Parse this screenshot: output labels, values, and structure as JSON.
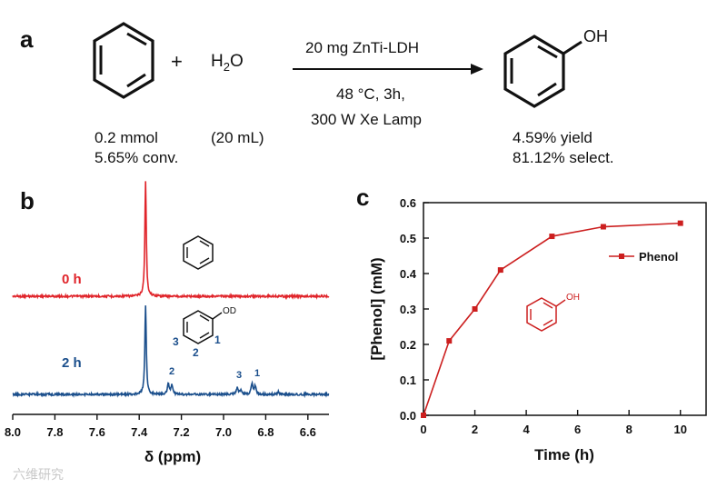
{
  "panel_a": {
    "label": "a",
    "plus": "+",
    "water_text": "H",
    "water_sub": "2",
    "water_tail": "O",
    "catalyst": "20 mg ZnTi-LDH",
    "temp_time": "48 °C, 3h,",
    "lamp": "300 W Xe Lamp",
    "reactant_amount": "0.2 mmol",
    "conversion": "5.65% conv.",
    "water_volume": "(20 mL)",
    "yield": "4.59% yield",
    "selectivity": "81.12% select.",
    "phenol_oh": "OH"
  },
  "panel_b": {
    "label": "b",
    "trace_0h_label": "0 h",
    "trace_2h_label": "2 h",
    "phenol_od": "OD",
    "ring_pos_3": "3",
    "ring_pos_2": "2",
    "ring_pos_1": "1",
    "peak_label_2": "2",
    "peak_label_3": "3",
    "peak_label_1": "1",
    "xlabel": "δ (ppm)",
    "colors": {
      "trace_0h": "#e0242a",
      "trace_2h": "#1b4f8c",
      "labels_blue": "#1b4f8c"
    }
  },
  "chart_data": [
    {
      "type": "line",
      "panel": "c",
      "x": [
        0,
        1,
        2,
        3,
        5,
        7,
        10
      ],
      "series": [
        {
          "name": "Phenol",
          "values": [
            0.0,
            0.21,
            0.3,
            0.41,
            0.505,
            0.532,
            0.542
          ],
          "color": "#cc1f1f"
        }
      ],
      "xlabel": "Time (h)",
      "ylabel": "[Phenol] (mM)",
      "xlim": [
        0,
        11
      ],
      "ylim": [
        0,
        0.6
      ],
      "xticks": [
        "0",
        "2",
        "4",
        "6",
        "8",
        "10"
      ],
      "yticks": [
        "0.0",
        "0.1",
        "0.2",
        "0.3",
        "0.4",
        "0.5",
        "0.6"
      ],
      "legend": "Phenol",
      "legend_position": "top-right",
      "inset_label": "OH",
      "grid": false
    },
    {
      "type": "line",
      "panel": "b",
      "x_axis": "chemical shift (ppm), reversed",
      "xlim": [
        8.0,
        6.5
      ],
      "xticks": [
        "8.0",
        "7.8",
        "7.6",
        "7.4",
        "7.2",
        "7.0",
        "6.8",
        "6.6"
      ],
      "series": [
        {
          "name": "0 h",
          "peaks_ppm": [
            7.37
          ]
        },
        {
          "name": "2 h",
          "peaks_ppm": [
            7.37,
            7.25,
            6.93,
            6.85
          ]
        }
      ]
    }
  ],
  "watermark": "六维研究"
}
